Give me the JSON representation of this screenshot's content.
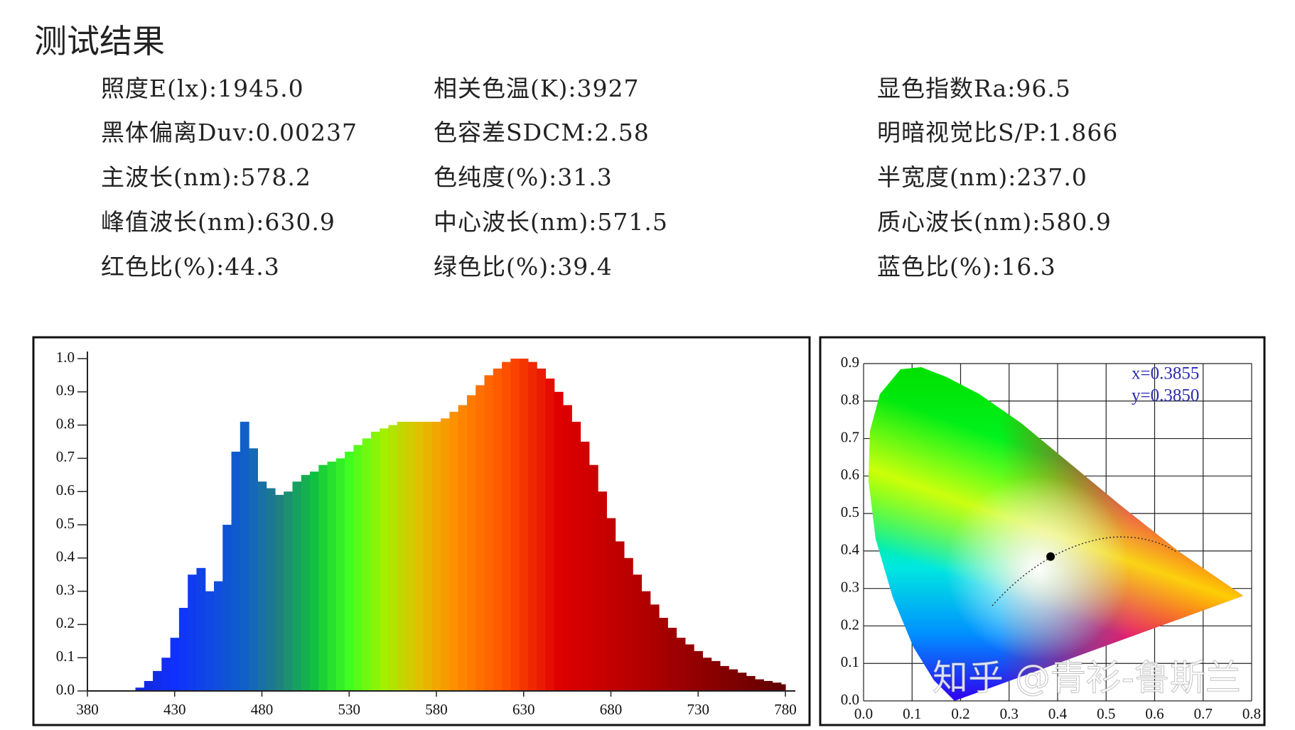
{
  "title": "测试结果",
  "metrics": [
    [
      "照度E(lx):1945.0",
      "相关色温(K):3927",
      "显色指数Ra:96.5"
    ],
    [
      "黑体偏离Duv:0.00237",
      "色容差SDCM:2.58",
      "明暗视觉比S/P:1.866"
    ],
    [
      "主波长(nm):578.2",
      "色纯度(%):31.3",
      "半宽度(nm):237.0"
    ],
    [
      "峰值波长(nm):630.9",
      "中心波长(nm):571.5",
      "质心波长(nm):580.9"
    ],
    [
      "红色比(%):44.3",
      "绿色比(%):39.4",
      "蓝色比(%):16.3"
    ]
  ],
  "watermark": "知乎 @青衫-鲁斯兰",
  "chart_data": [
    {
      "type": "spectrum",
      "x": [
        380,
        385,
        390,
        395,
        400,
        405,
        410,
        415,
        420,
        425,
        430,
        435,
        440,
        445,
        450,
        455,
        460,
        465,
        470,
        475,
        480,
        485,
        490,
        495,
        500,
        505,
        510,
        515,
        520,
        525,
        530,
        535,
        540,
        545,
        550,
        555,
        560,
        565,
        570,
        575,
        580,
        585,
        590,
        595,
        600,
        605,
        610,
        615,
        620,
        625,
        630,
        635,
        640,
        645,
        650,
        655,
        660,
        665,
        670,
        675,
        680,
        685,
        690,
        695,
        700,
        705,
        710,
        715,
        720,
        725,
        730,
        735,
        740,
        745,
        750,
        755,
        760,
        765,
        770,
        775,
        780
      ],
      "values": [
        0,
        0,
        0,
        0,
        0,
        0,
        0.01,
        0.03,
        0.06,
        0.1,
        0.16,
        0.25,
        0.35,
        0.37,
        0.3,
        0.33,
        0.5,
        0.72,
        0.81,
        0.73,
        0.63,
        0.61,
        0.59,
        0.6,
        0.63,
        0.65,
        0.66,
        0.68,
        0.69,
        0.7,
        0.72,
        0.74,
        0.76,
        0.78,
        0.79,
        0.8,
        0.81,
        0.81,
        0.81,
        0.81,
        0.81,
        0.82,
        0.84,
        0.86,
        0.89,
        0.92,
        0.95,
        0.97,
        0.99,
        1.0,
        1.0,
        0.99,
        0.97,
        0.94,
        0.9,
        0.86,
        0.81,
        0.75,
        0.68,
        0.6,
        0.52,
        0.45,
        0.4,
        0.35,
        0.3,
        0.26,
        0.22,
        0.19,
        0.16,
        0.14,
        0.12,
        0.1,
        0.09,
        0.075,
        0.065,
        0.055,
        0.045,
        0.035,
        0.03,
        0.025,
        0.02
      ],
      "xlim": [
        380,
        780
      ],
      "ylim": [
        0,
        1
      ],
      "xticks": [
        380,
        430,
        480,
        530,
        580,
        630,
        680,
        730,
        780
      ],
      "yticks": [
        {
          "value": 0,
          "label": "0.0"
        },
        {
          "value": 0.1,
          "label": "0.1"
        },
        {
          "value": 0.2,
          "label": "0.2"
        },
        {
          "value": 0.3,
          "label": "0.3"
        },
        {
          "value": 0.4,
          "label": "0.4"
        },
        {
          "value": 0.5,
          "label": "0.5"
        },
        {
          "value": 0.6,
          "label": "0.6"
        },
        {
          "value": 0.7,
          "label": "0.7"
        },
        {
          "value": 0.8,
          "label": "0.8"
        },
        {
          "value": 0.9,
          "label": "0.9"
        },
        {
          "value": 1,
          "label": "1.0"
        }
      ],
      "grid": false
    },
    {
      "type": "scatter",
      "x": [
        0.3855
      ],
      "values": [
        0.385
      ],
      "color": "#000000",
      "annotations": [
        "x=0.3855",
        "y=0.3850"
      ],
      "xlim": [
        0,
        0.8
      ],
      "ylim": [
        0,
        0.9
      ],
      "xticks": [
        {
          "value": 0,
          "label": "0.0"
        },
        {
          "value": 0.1,
          "label": "0.1"
        },
        {
          "value": 0.2,
          "label": "0.2"
        },
        {
          "value": 0.3,
          "label": "0.3"
        },
        {
          "value": 0.4,
          "label": "0.4"
        },
        {
          "value": 0.5,
          "label": "0.5"
        },
        {
          "value": 0.6,
          "label": "0.6"
        },
        {
          "value": 0.7,
          "label": "0.7"
        },
        {
          "value": 0.8,
          "label": "0.8"
        }
      ],
      "yticks": [
        {
          "value": 0,
          "label": "0.0"
        },
        {
          "value": 0.1,
          "label": "0.1"
        },
        {
          "value": 0.2,
          "label": "0.2"
        },
        {
          "value": 0.3,
          "label": "0.3"
        },
        {
          "value": 0.4,
          "label": "0.4"
        },
        {
          "value": 0.5,
          "label": "0.5"
        },
        {
          "value": 0.6,
          "label": "0.6"
        },
        {
          "value": 0.7,
          "label": "0.7"
        },
        {
          "value": 0.8,
          "label": "0.8"
        },
        {
          "value": 0.9,
          "label": "0.9"
        }
      ],
      "grid": true
    }
  ]
}
